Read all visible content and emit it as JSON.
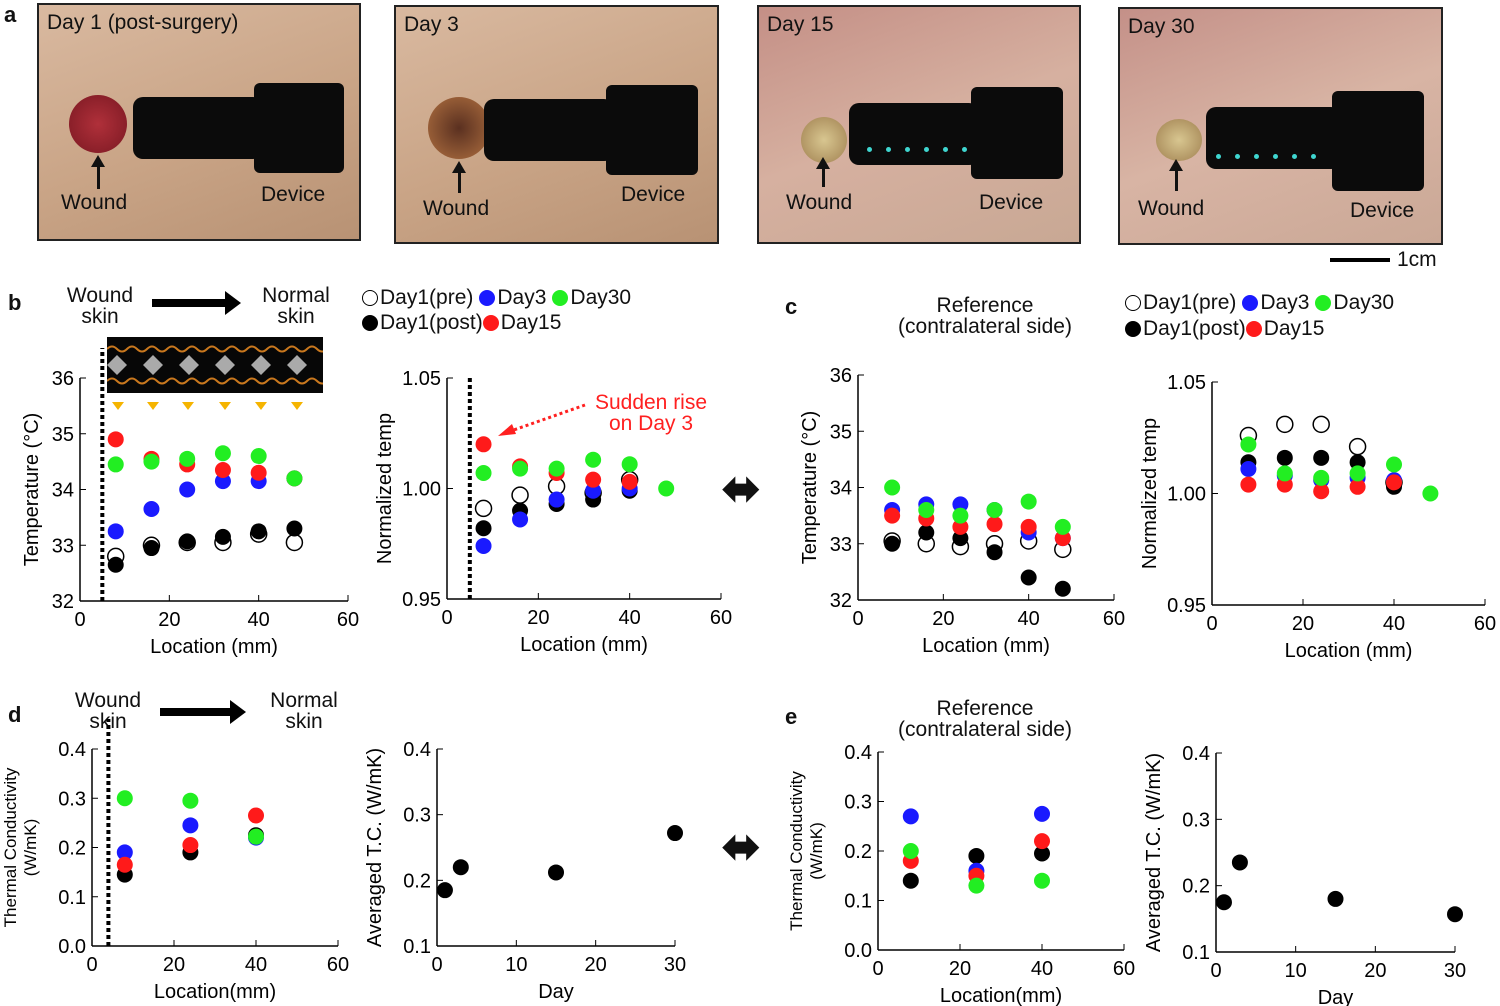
{
  "panel_labels": {
    "a": "a",
    "b": "b",
    "c": "c",
    "d": "d",
    "e": "e"
  },
  "photos": [
    {
      "title": "Day 1 (post-surgery)",
      "wound_label": "Wound",
      "device_label": "Device"
    },
    {
      "title": "Day 3",
      "wound_label": "Wound",
      "device_label": "Device"
    },
    {
      "title": "Day 15",
      "wound_label": "Wound",
      "device_label": "Device"
    },
    {
      "title": "Day 30",
      "wound_label": "Wound",
      "device_label": "Device"
    }
  ],
  "scale_bar": "1cm",
  "annotations": {
    "wound_skin": "Wound\nskin",
    "normal_skin": "Normal\nskin",
    "reference": "Reference\n(contralateral side)",
    "sudden_rise": "Sudden rise\non Day 3",
    "double_arrow": "⬌"
  },
  "legend": [
    {
      "label": "Day1(pre)",
      "color": "#ffffff",
      "filled": false
    },
    {
      "label": "Day3",
      "color": "#1a1aff"
    },
    {
      "label": "Day30",
      "color": "#22ee22"
    },
    {
      "label": "Day1(post)",
      "color": "#000000"
    },
    {
      "label": "Day15",
      "color": "#ff1a1a"
    }
  ],
  "chart_data": [
    {
      "id": "b-temp",
      "type": "scatter",
      "xlabel": "Location (mm)",
      "ylabel": "Temperature (°C)",
      "xlim": [
        0,
        60
      ],
      "ylim": [
        32,
        36
      ],
      "xticks": [
        "0",
        "20",
        "40",
        "60"
      ],
      "yticks": [
        "32",
        "33",
        "34",
        "35",
        "36"
      ],
      "marker_line": 5,
      "series": [
        {
          "name": "Day1(pre)",
          "color": "#ffffff",
          "open": true,
          "x": [
            8,
            16,
            24,
            32,
            40,
            48
          ],
          "y": [
            32.8,
            33.0,
            33.05,
            33.05,
            33.2,
            33.05
          ]
        },
        {
          "name": "Day1(post)",
          "color": "#000000",
          "x": [
            8,
            16,
            24,
            32,
            40,
            48
          ],
          "y": [
            32.65,
            32.95,
            33.07,
            33.15,
            33.25,
            33.3
          ]
        },
        {
          "name": "Day3",
          "color": "#1a1aff",
          "x": [
            8,
            16,
            24,
            32,
            40,
            48
          ],
          "y": [
            33.25,
            33.65,
            34.0,
            34.15,
            34.15,
            34.2
          ]
        },
        {
          "name": "Day15",
          "color": "#ff1a1a",
          "x": [
            8,
            16,
            24,
            32,
            40,
            48
          ],
          "y": [
            34.9,
            34.55,
            34.45,
            34.35,
            34.3,
            34.2
          ]
        },
        {
          "name": "Day30",
          "color": "#22ee22",
          "x": [
            8,
            16,
            24,
            32,
            40,
            48
          ],
          "y": [
            34.45,
            34.5,
            34.55,
            34.65,
            34.6,
            34.2
          ]
        }
      ]
    },
    {
      "id": "b-norm",
      "type": "scatter",
      "xlabel": "Location (mm)",
      "ylabel": "Normalized temp",
      "xlim": [
        0,
        60
      ],
      "ylim": [
        0.95,
        1.05
      ],
      "xticks": [
        "0",
        "20",
        "40",
        "60"
      ],
      "yticks": [
        "0.95",
        "1.00",
        "1.05"
      ],
      "marker_line": 5,
      "series": [
        {
          "name": "Day1(pre)",
          "color": "#ffffff",
          "open": true,
          "x": [
            8,
            16,
            24,
            32,
            40
          ],
          "y": [
            0.991,
            0.997,
            1.001,
            0.998,
            1.004
          ]
        },
        {
          "name": "Day1(post)",
          "color": "#000000",
          "x": [
            8,
            16,
            24,
            32,
            40
          ],
          "y": [
            0.982,
            0.99,
            0.993,
            0.995,
            0.999
          ]
        },
        {
          "name": "Day3",
          "color": "#1a1aff",
          "x": [
            8,
            16,
            24,
            32,
            40
          ],
          "y": [
            0.974,
            0.986,
            0.995,
            0.999,
            1.0
          ]
        },
        {
          "name": "Day15",
          "color": "#ff1a1a",
          "x": [
            8,
            16,
            24,
            32,
            40
          ],
          "y": [
            1.02,
            1.01,
            1.007,
            1.004,
            1.003
          ]
        },
        {
          "name": "Day30",
          "color": "#22ee22",
          "x": [
            8,
            16,
            24,
            32,
            40,
            48
          ],
          "y": [
            1.007,
            1.009,
            1.009,
            1.013,
            1.011,
            1.0
          ]
        }
      ]
    },
    {
      "id": "c-temp",
      "type": "scatter",
      "xlabel": "Location (mm)",
      "ylabel": "Temperature (°C)",
      "xlim": [
        0,
        60
      ],
      "ylim": [
        32,
        36
      ],
      "xticks": [
        "0",
        "20",
        "40",
        "60"
      ],
      "yticks": [
        "32",
        "33",
        "34",
        "35",
        "36"
      ],
      "series": [
        {
          "name": "Day1(pre)",
          "color": "#ffffff",
          "open": true,
          "x": [
            8,
            16,
            24,
            32,
            40,
            48
          ],
          "y": [
            33.05,
            33.0,
            32.95,
            33.0,
            33.05,
            32.9
          ]
        },
        {
          "name": "Day1(post)",
          "color": "#000000",
          "x": [
            8,
            16,
            24,
            32,
            40,
            48
          ],
          "y": [
            33.0,
            33.2,
            33.1,
            32.85,
            32.4,
            32.2
          ]
        },
        {
          "name": "Day3",
          "color": "#1a1aff",
          "x": [
            8,
            16,
            24,
            32,
            40,
            48
          ],
          "y": [
            33.6,
            33.7,
            33.7,
            33.6,
            33.2,
            33.1
          ]
        },
        {
          "name": "Day15",
          "color": "#ff1a1a",
          "x": [
            8,
            16,
            24,
            32,
            40,
            48
          ],
          "y": [
            33.5,
            33.45,
            33.3,
            33.35,
            33.3,
            33.1
          ]
        },
        {
          "name": "Day30",
          "color": "#22ee22",
          "x": [
            8,
            16,
            24,
            32,
            40,
            48
          ],
          "y": [
            34.0,
            33.6,
            33.5,
            33.6,
            33.75,
            33.3
          ]
        }
      ]
    },
    {
      "id": "c-norm",
      "type": "scatter",
      "xlabel": "Location (mm)",
      "ylabel": "Normalized temp",
      "xlim": [
        0,
        60
      ],
      "ylim": [
        0.95,
        1.05
      ],
      "xticks": [
        "0",
        "20",
        "40",
        "60"
      ],
      "yticks": [
        "0.95",
        "1.00",
        "1.05"
      ],
      "series": [
        {
          "name": "Day1(pre)",
          "color": "#ffffff",
          "open": true,
          "x": [
            8,
            16,
            24,
            32,
            40
          ],
          "y": [
            1.026,
            1.031,
            1.031,
            1.021,
            1.005
          ]
        },
        {
          "name": "Day1(post)",
          "color": "#000000",
          "x": [
            8,
            16,
            24,
            32,
            40
          ],
          "y": [
            1.014,
            1.016,
            1.016,
            1.014,
            1.003
          ]
        },
        {
          "name": "Day3",
          "color": "#1a1aff",
          "x": [
            8,
            16,
            24,
            32,
            40
          ],
          "y": [
            1.011,
            1.008,
            1.006,
            1.007,
            1.006
          ]
        },
        {
          "name": "Day15",
          "color": "#ff1a1a",
          "x": [
            8,
            16,
            24,
            32,
            40
          ],
          "y": [
            1.004,
            1.004,
            1.001,
            1.003,
            1.005
          ]
        },
        {
          "name": "Day30",
          "color": "#22ee22",
          "x": [
            8,
            16,
            24,
            32,
            40,
            48
          ],
          "y": [
            1.022,
            1.009,
            1.007,
            1.009,
            1.013,
            1.0
          ]
        }
      ]
    },
    {
      "id": "d-tc",
      "type": "scatter",
      "xlabel": "Location(mm)",
      "ylabel": "Thermal Conductivity\n(W/mK)",
      "xlim": [
        0,
        60
      ],
      "ylim": [
        0,
        0.4
      ],
      "xticks": [
        "0",
        "20",
        "40",
        "60"
      ],
      "yticks": [
        "0.0",
        "0.1",
        "0.2",
        "0.3",
        "0.4"
      ],
      "marker_line": 4,
      "series": [
        {
          "name": "Day1(post)",
          "color": "#000000",
          "x": [
            8,
            24,
            40
          ],
          "y": [
            0.145,
            0.19,
            0.225
          ]
        },
        {
          "name": "Day3",
          "color": "#1a1aff",
          "x": [
            8,
            24,
            40
          ],
          "y": [
            0.19,
            0.245,
            0.22
          ]
        },
        {
          "name": "Day15",
          "color": "#ff1a1a",
          "x": [
            8,
            24,
            40
          ],
          "y": [
            0.165,
            0.205,
            0.265
          ]
        },
        {
          "name": "Day30",
          "color": "#22ee22",
          "x": [
            8,
            24,
            40
          ],
          "y": [
            0.3,
            0.295,
            0.222
          ]
        }
      ]
    },
    {
      "id": "d-avg",
      "type": "scatter",
      "xlabel": "Day",
      "ylabel": "Averaged T.C. (W/mK)",
      "xlim": [
        0,
        30
      ],
      "ylim": [
        0.1,
        0.4
      ],
      "xticks": [
        "0",
        "10",
        "20",
        "30"
      ],
      "yticks": [
        "0.1",
        "0.2",
        "0.3",
        "0.4"
      ],
      "series": [
        {
          "name": "Average",
          "color": "#000000",
          "x": [
            1,
            3,
            15,
            30
          ],
          "y": [
            0.185,
            0.22,
            0.212,
            0.272
          ]
        }
      ]
    },
    {
      "id": "e-tc",
      "type": "scatter",
      "xlabel": "Location(mm)",
      "ylabel": "Thermal Conductivity\n(W/mK)",
      "xlim": [
        0,
        60
      ],
      "ylim": [
        0,
        0.4
      ],
      "xticks": [
        "0",
        "20",
        "40",
        "60"
      ],
      "yticks": [
        "0.0",
        "0.1",
        "0.2",
        "0.3",
        "0.4"
      ],
      "series": [
        {
          "name": "Day1(post)",
          "color": "#000000",
          "x": [
            8,
            24,
            40
          ],
          "y": [
            0.14,
            0.19,
            0.195
          ]
        },
        {
          "name": "Day3",
          "color": "#1a1aff",
          "x": [
            8,
            24,
            40
          ],
          "y": [
            0.27,
            0.16,
            0.275
          ]
        },
        {
          "name": "Day15",
          "color": "#ff1a1a",
          "x": [
            8,
            24,
            40
          ],
          "y": [
            0.18,
            0.15,
            0.22
          ]
        },
        {
          "name": "Day30",
          "color": "#22ee22",
          "x": [
            8,
            24,
            40
          ],
          "y": [
            0.2,
            0.13,
            0.14
          ]
        }
      ]
    },
    {
      "id": "e-avg",
      "type": "scatter",
      "xlabel": "Day",
      "ylabel": "Averaged T.C. (W/mK)",
      "xlim": [
        0,
        30
      ],
      "ylim": [
        0.1,
        0.4
      ],
      "xticks": [
        "0",
        "10",
        "20",
        "30"
      ],
      "yticks": [
        "0.1",
        "0.2",
        "0.3",
        "0.4"
      ],
      "series": [
        {
          "name": "Average",
          "color": "#000000",
          "x": [
            1,
            3,
            15,
            30
          ],
          "y": [
            0.175,
            0.235,
            0.18,
            0.157
          ]
        }
      ]
    }
  ]
}
